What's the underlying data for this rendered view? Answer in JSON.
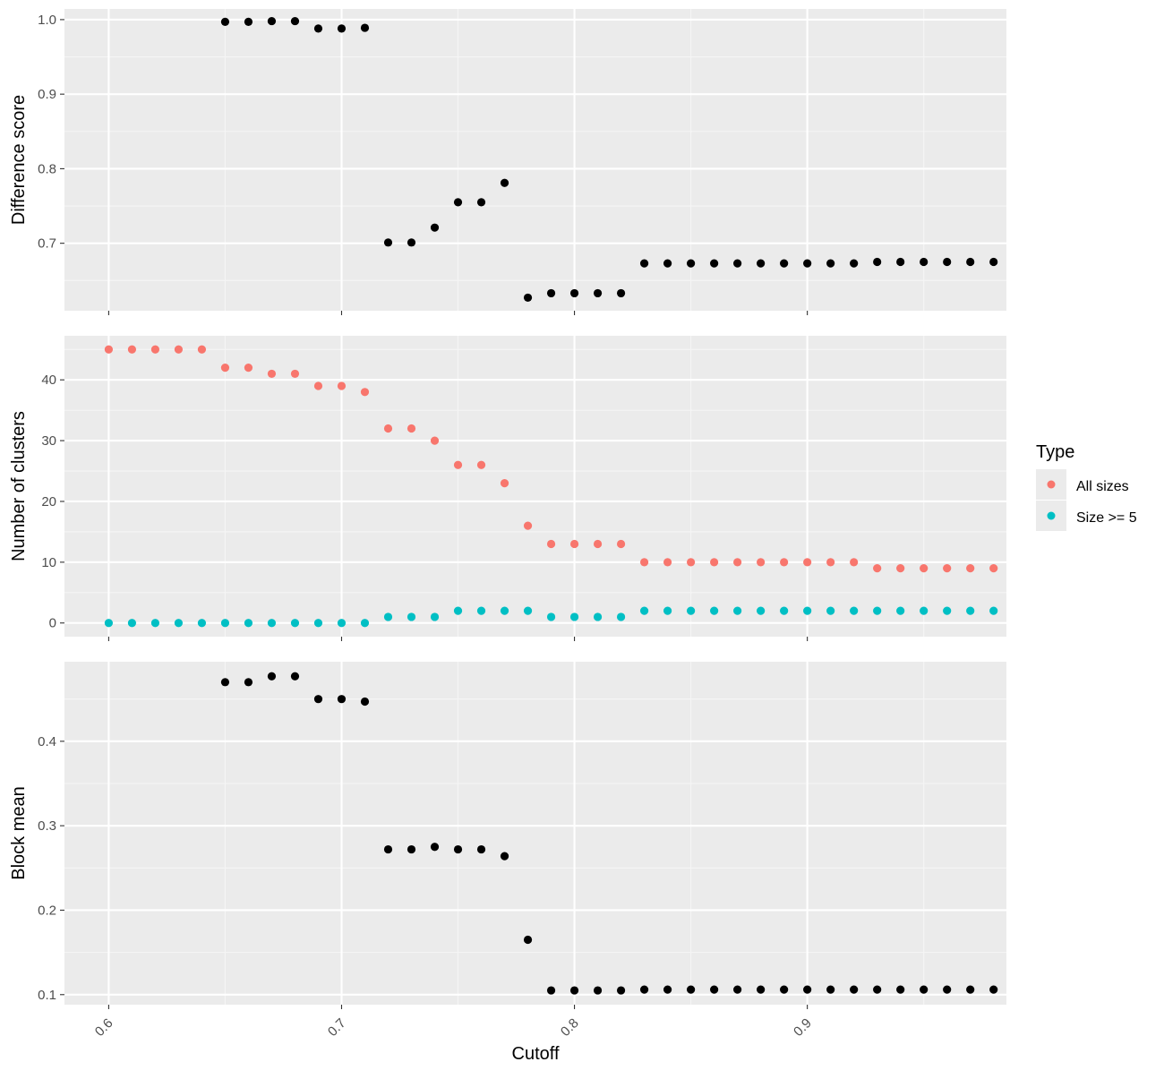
{
  "colors": {
    "panel_bg": "#EBEBEB",
    "grid_major": "#FFFFFF",
    "grid_minor": "#F5F5F5",
    "point_black": "#000000",
    "all_sizes": "#F8766D",
    "size_ge5": "#00BFC4",
    "tick_text": "#4D4D4D",
    "axis_text": "#000000"
  },
  "chart_data": {
    "type": "scatter",
    "xlabel": "Cutoff",
    "x_ticks": [
      "0.6",
      "0.7",
      "0.8",
      "0.9"
    ],
    "x_tick_values": [
      0.6,
      0.7,
      0.8,
      0.9
    ],
    "xlim": [
      0.581,
      0.9855
    ],
    "legend": {
      "title": "Type",
      "position": "right",
      "entries": [
        "All sizes",
        "Size >= 5"
      ]
    },
    "panels": [
      {
        "ylabel": "Difference score",
        "y_ticks": [
          "0.7",
          "0.8",
          "0.9",
          "1.0"
        ],
        "y_tick_values": [
          0.7,
          0.8,
          0.9,
          1.0
        ],
        "ylim": [
          0.6095,
          1.0143
        ],
        "series": [
          {
            "color": "#000000",
            "x": [
              0.65,
              0.66,
              0.67,
              0.68,
              0.69,
              0.7,
              0.71,
              0.72,
              0.73,
              0.74,
              0.75,
              0.76,
              0.77,
              0.78,
              0.79,
              0.8,
              0.81,
              0.82,
              0.83,
              0.84,
              0.85,
              0.86,
              0.87,
              0.88,
              0.89,
              0.9,
              0.91,
              0.92,
              0.93,
              0.94,
              0.95,
              0.96,
              0.97,
              0.98
            ],
            "y": [
              0.997,
              0.997,
              0.998,
              0.998,
              0.988,
              0.988,
              0.989,
              0.701,
              0.701,
              0.721,
              0.755,
              0.755,
              0.781,
              0.627,
              0.633,
              0.633,
              0.633,
              0.633,
              0.673,
              0.673,
              0.673,
              0.673,
              0.673,
              0.673,
              0.673,
              0.673,
              0.673,
              0.673,
              0.675,
              0.675,
              0.675,
              0.675,
              0.675,
              0.675
            ]
          }
        ]
      },
      {
        "ylabel": "Number of clusters",
        "y_ticks": [
          "0",
          "10",
          "20",
          "30",
          "40"
        ],
        "y_tick_values": [
          0,
          10,
          20,
          30,
          40
        ],
        "ylim": [
          -2.25,
          47.25
        ],
        "series": [
          {
            "name": "All sizes",
            "color": "#F8766D",
            "x": [
              0.6,
              0.61,
              0.62,
              0.63,
              0.64,
              0.65,
              0.66,
              0.67,
              0.68,
              0.69,
              0.7,
              0.71,
              0.72,
              0.73,
              0.74,
              0.75,
              0.76,
              0.77,
              0.78,
              0.79,
              0.8,
              0.81,
              0.82,
              0.83,
              0.84,
              0.85,
              0.86,
              0.87,
              0.88,
              0.89,
              0.9,
              0.91,
              0.92,
              0.93,
              0.94,
              0.95,
              0.96,
              0.97,
              0.98
            ],
            "y": [
              45,
              45,
              45,
              45,
              45,
              42,
              42,
              41,
              41,
              39,
              39,
              38,
              32,
              32,
              30,
              26,
              26,
              23,
              16,
              13,
              13,
              13,
              13,
              10,
              10,
              10,
              10,
              10,
              10,
              10,
              10,
              10,
              10,
              9,
              9,
              9,
              9,
              9,
              9
            ]
          },
          {
            "name": "Size >= 5",
            "color": "#00BFC4",
            "x": [
              0.6,
              0.61,
              0.62,
              0.63,
              0.64,
              0.65,
              0.66,
              0.67,
              0.68,
              0.69,
              0.7,
              0.71,
              0.72,
              0.73,
              0.74,
              0.75,
              0.76,
              0.77,
              0.78,
              0.79,
              0.8,
              0.81,
              0.82,
              0.83,
              0.84,
              0.85,
              0.86,
              0.87,
              0.88,
              0.89,
              0.9,
              0.91,
              0.92,
              0.93,
              0.94,
              0.95,
              0.96,
              0.97,
              0.98
            ],
            "y": [
              0,
              0,
              0,
              0,
              0,
              0,
              0,
              0,
              0,
              0,
              0,
              0,
              1,
              1,
              1,
              2,
              2,
              2,
              2,
              1,
              1,
              1,
              1,
              2,
              2,
              2,
              2,
              2,
              2,
              2,
              2,
              2,
              2,
              2,
              2,
              2,
              2,
              2,
              2
            ]
          }
        ]
      },
      {
        "ylabel": "Block mean",
        "y_ticks": [
          "0.1",
          "0.2",
          "0.3",
          "0.4"
        ],
        "y_tick_values": [
          0.1,
          0.2,
          0.3,
          0.4
        ],
        "ylim": [
          0.0881,
          0.4942
        ],
        "series": [
          {
            "color": "#000000",
            "x": [
              0.65,
              0.66,
              0.67,
              0.68,
              0.69,
              0.7,
              0.71,
              0.72,
              0.73,
              0.74,
              0.75,
              0.76,
              0.77,
              0.78,
              0.79,
              0.8,
              0.81,
              0.82,
              0.83,
              0.84,
              0.85,
              0.86,
              0.87,
              0.88,
              0.89,
              0.9,
              0.91,
              0.92,
              0.93,
              0.94,
              0.95,
              0.96,
              0.97,
              0.98
            ],
            "y": [
              0.47,
              0.47,
              0.477,
              0.477,
              0.45,
              0.45,
              0.447,
              0.272,
              0.272,
              0.275,
              0.272,
              0.272,
              0.264,
              0.165,
              0.105,
              0.105,
              0.105,
              0.105,
              0.106,
              0.106,
              0.106,
              0.106,
              0.106,
              0.106,
              0.106,
              0.106,
              0.106,
              0.106,
              0.106,
              0.106,
              0.106,
              0.106,
              0.106,
              0.106
            ]
          }
        ]
      }
    ]
  }
}
